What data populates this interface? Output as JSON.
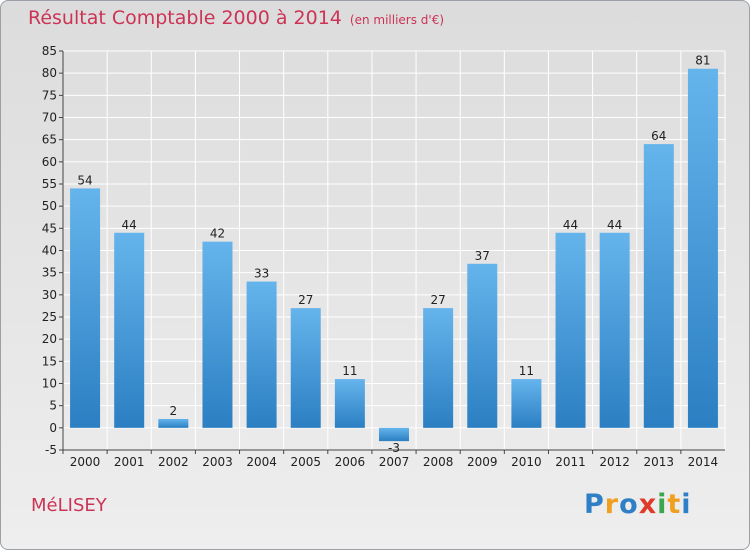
{
  "header": {
    "title": "Résultat Comptable 2000 à 2014",
    "subtitle": "(en milliers d'€)"
  },
  "footer": {
    "commune": "MéLISEY",
    "logo_letters": [
      {
        "ch": "P",
        "color": "#2f7fc6"
      },
      {
        "ch": "r",
        "color": "#f0a020"
      },
      {
        "ch": "o",
        "color": "#2f7fc6"
      },
      {
        "ch": "x",
        "color": "#e03a2a"
      },
      {
        "ch": "i",
        "color": "#3aa84a"
      },
      {
        "ch": "t",
        "color": "#f0a020"
      },
      {
        "ch": "i",
        "color": "#2f7fc6"
      }
    ]
  },
  "colors": {
    "bar_top": "#65b4ec",
    "bar_bottom": "#2b7fc2",
    "grid": "#ffffff",
    "text_accent": "#cc3355"
  },
  "chart_data": {
    "type": "bar",
    "title": "Résultat Comptable 2000 à 2014",
    "subtitle": "(en milliers d'€)",
    "categories": [
      "2000",
      "2001",
      "2002",
      "2003",
      "2004",
      "2005",
      "2006",
      "2007",
      "2008",
      "2009",
      "2010",
      "2011",
      "2012",
      "2013",
      "2014"
    ],
    "values": [
      54,
      44,
      2,
      42,
      33,
      27,
      11,
      -3,
      27,
      37,
      11,
      44,
      44,
      64,
      81
    ],
    "data_labels": [
      "54",
      "44",
      "2",
      "42",
      "33",
      "27",
      "11",
      "-3",
      "27",
      "37",
      "11",
      "44",
      "44",
      "64",
      "81"
    ],
    "ylim": [
      -5,
      85
    ],
    "yticks": [
      -5,
      0,
      5,
      10,
      15,
      20,
      25,
      30,
      35,
      40,
      45,
      50,
      55,
      60,
      65,
      70,
      75,
      80,
      85
    ],
    "grid": true,
    "legend": "none"
  }
}
